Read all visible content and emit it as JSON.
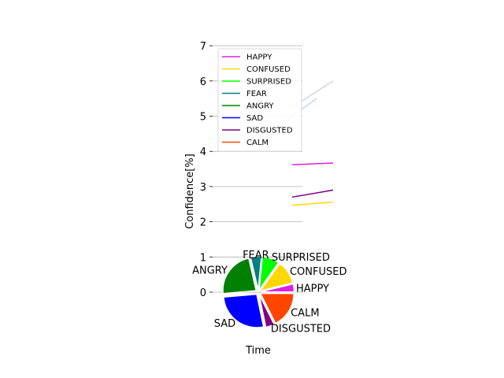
{
  "chart_data": [
    {
      "type": "line",
      "xlabel": "Time",
      "ylabel": "Confidence[%]",
      "ylim": [
        0,
        7
      ],
      "yticks": [
        "0",
        "1",
        "2",
        "3",
        "4",
        "5",
        "6",
        "7"
      ],
      "grid": "horizontal",
      "legend_placement": "top-left",
      "series": [
        {
          "name": "HAPPY",
          "color": "#e020e0",
          "x": [
            0,
            1
          ],
          "y": [
            3.62,
            3.67
          ]
        },
        {
          "name": "CONFUSED",
          "color": "#ffd700",
          "x": [
            0,
            1
          ],
          "y": [
            2.47,
            2.56
          ]
        },
        {
          "name": "SURPRISED",
          "color": "#00ff00",
          "x": [],
          "y": []
        },
        {
          "name": "FEAR",
          "color": "#008080",
          "x": [],
          "y": []
        },
        {
          "name": "ANGRY",
          "color": "#008000",
          "x": [],
          "y": []
        },
        {
          "name": "SAD",
          "color": "#0000ff",
          "x": [],
          "y": []
        },
        {
          "name": "DISGUSTED",
          "color": "#800080",
          "x": [
            0,
            1
          ],
          "y": [
            2.7,
            2.9
          ]
        },
        {
          "name": "CALM",
          "color": "#ff4500",
          "x": [],
          "y": []
        }
      ],
      "faint_lines": [
        {
          "color": "#c9d6f2",
          "x": [
            0,
            1
          ],
          "y": [
            5.25,
            6.0
          ]
        },
        {
          "color": "#c9d6f2",
          "x": [
            -1.2,
            0.0,
            0.6
          ],
          "y": [
            4.0,
            5.0,
            5.5
          ]
        }
      ]
    },
    {
      "type": "pie",
      "labels": [
        "HAPPY",
        "CONFUSED",
        "SURPRISED",
        "FEAR",
        "ANGRY",
        "SAD",
        "DISGUSTED",
        "CALM"
      ],
      "values": [
        3.66,
        11.0,
        8.0,
        5.0,
        22.0,
        26.0,
        4.0,
        17.0
      ],
      "colors": [
        "#e020e0",
        "#ffd700",
        "#00ff00",
        "#008080",
        "#008000",
        "#0000ff",
        "#800080",
        "#ff4500"
      ],
      "exploded": true
    }
  ]
}
